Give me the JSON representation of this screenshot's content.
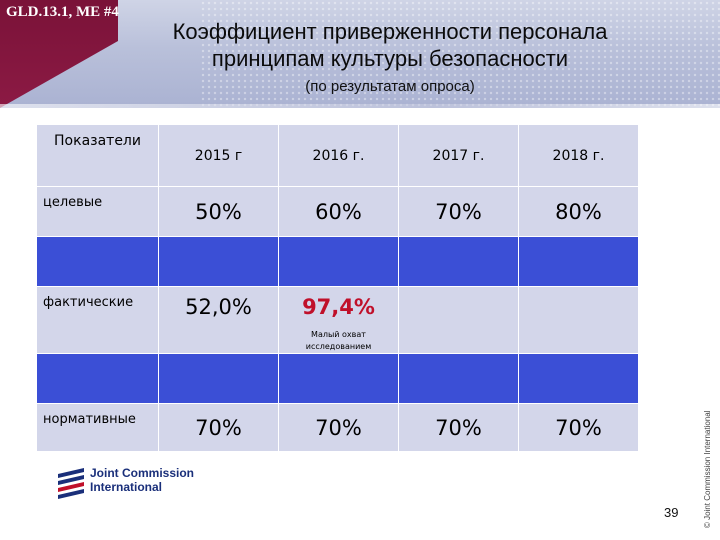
{
  "header": {
    "code": "GLD.13.1, ME #4",
    "title_line1": "Коэффициент приверженности персонала",
    "title_line2": "принципам культуры безопасности",
    "subtitle": "(по результатам опроса)"
  },
  "table": {
    "col_headers": [
      "Показатели",
      "2015 г",
      "2016 г.",
      "2017 г.",
      "2018 г."
    ],
    "rows": {
      "target": {
        "label": "целевые",
        "values": [
          "50%",
          "60%",
          "70%",
          "80%"
        ]
      },
      "actual": {
        "label": "фактические",
        "values": [
          "52,0%",
          "97,4%",
          "",
          ""
        ],
        "note": "Малый охват исследованием"
      },
      "normative": {
        "label": "нормативные",
        "values": [
          "70%",
          "70%",
          "70%",
          "70%"
        ]
      }
    }
  },
  "footer": {
    "logo_line1": "Joint Commission",
    "logo_line2": "International",
    "page_number": "39",
    "copyright": "© Joint Commission International"
  },
  "colors": {
    "header_maroon": "#7a1238",
    "cell_light": "#d3d6ea",
    "band_blue": "#3b4fd6",
    "highlight_red": "#c0102a",
    "logo_blue": "#1a2f7a"
  }
}
